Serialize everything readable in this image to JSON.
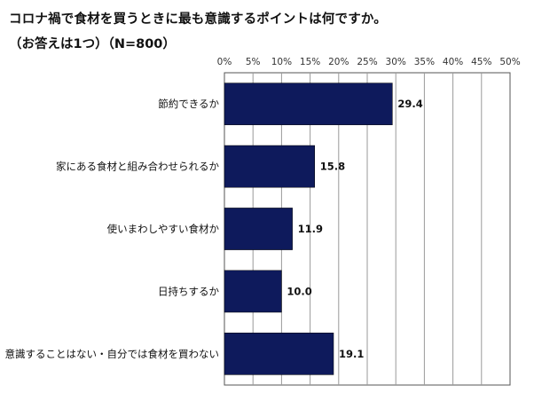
{
  "chart_data": {
    "type": "bar",
    "orientation": "horizontal",
    "title": "コロナ禍で食材を買うときに最も意識するポイントは何ですか。",
    "subtitle": "（お答えは1つ）（N=800）",
    "categories": [
      "節約できるか",
      "家にある食材と組み合わせられるか",
      "使いまわしやすい食材か",
      "日持ちするか",
      "意識することはない・自分では食材を買わない"
    ],
    "values": [
      29.4,
      15.8,
      11.9,
      10.0,
      19.1
    ],
    "value_labels": [
      "29.4",
      "15.8",
      "11.9",
      "10.0",
      "19.1"
    ],
    "xlim": [
      0,
      50
    ],
    "tick_labels": [
      "0%",
      "5%",
      "10%",
      "15%",
      "20%",
      "25%",
      "30%",
      "35%",
      "40%",
      "45%",
      "50%"
    ],
    "grid": true,
    "bar_color": "#0e1a5c"
  }
}
